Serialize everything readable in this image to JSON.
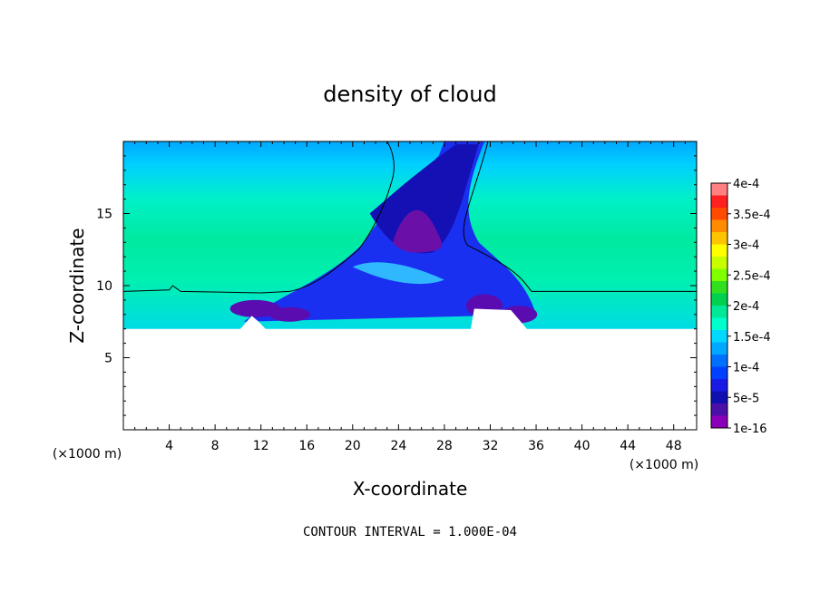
{
  "chart_data": {
    "type": "heatmap",
    "title": "density of cloud",
    "xlabel": "X-coordinate",
    "ylabel": "Z-coordinate",
    "x_unit": "(×1000 m)",
    "z_unit": "(×1000 m)",
    "xlim": [
      0,
      50
    ],
    "ylim": [
      0,
      20
    ],
    "x_ticks": [
      4,
      8,
      12,
      16,
      20,
      24,
      28,
      32,
      36,
      40,
      44,
      48
    ],
    "y_ticks": [
      5,
      10,
      15
    ],
    "colorbar": {
      "tick_labels": [
        "4e-4",
        "3.5e-4",
        "3e-4",
        "2.5e-4",
        "2e-4",
        "1.5e-4",
        "1e-4",
        "5e-5",
        "1e-16"
      ],
      "tick_values": [
        0.0004,
        0.00035,
        0.0003,
        0.00025,
        0.0002,
        0.00015,
        0.0001,
        5e-05,
        1e-16
      ],
      "colors_top_to_bottom": [
        "#ff8080",
        "#ff2020",
        "#ff4a00",
        "#ff8c00",
        "#ffc400",
        "#ffff00",
        "#c8ff00",
        "#80ff00",
        "#30e020",
        "#00d050",
        "#00e898",
        "#00ffcc",
        "#00d8ff",
        "#00a8ff",
        "#0070ff",
        "#0040ff",
        "#1a1ae6",
        "#1010b0",
        "#4a10a8",
        "#8a00b8"
      ]
    },
    "cloud_free_top_km": 7,
    "contour_line_level": 0.0001,
    "footnote": "CONTOUR INTERVAL = 1.000E-04"
  }
}
